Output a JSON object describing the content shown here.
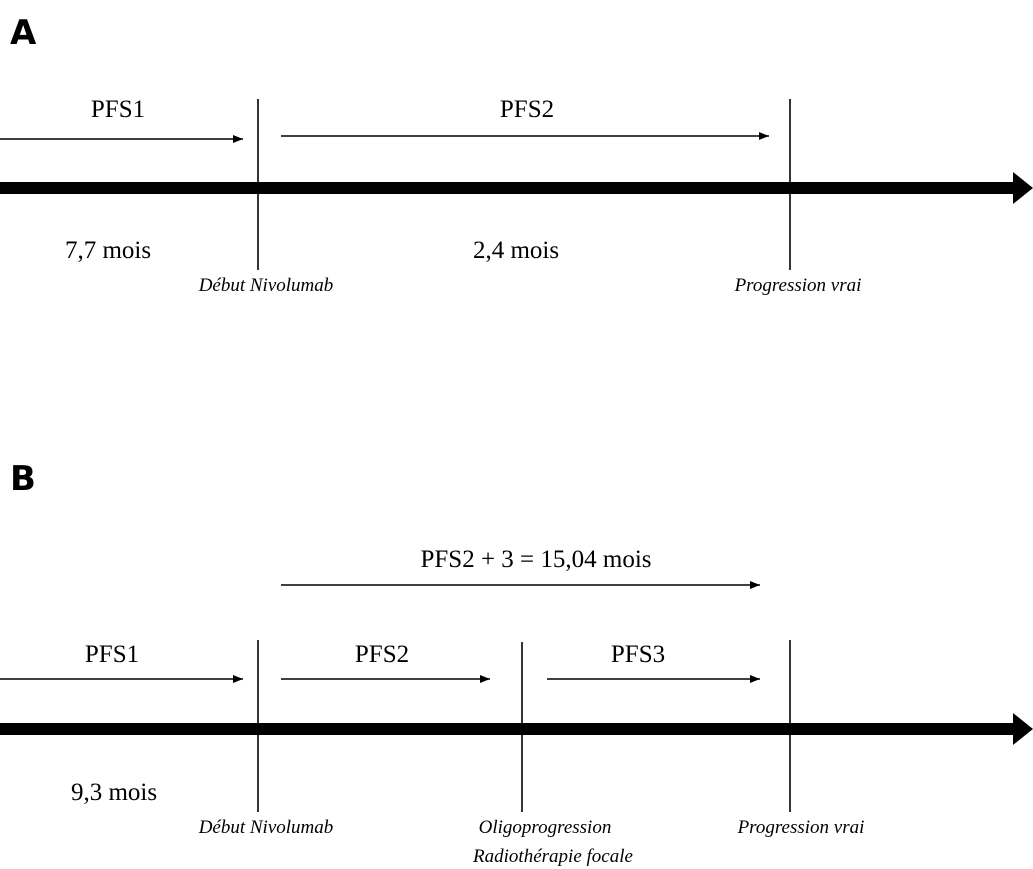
{
  "panels": {
    "a": {
      "letter": "A",
      "pfs1": "PFS1",
      "pfs2": "PFS2",
      "duration1": "7,7 mois",
      "duration2": "2,4 mois",
      "event1": "Début Nivolumab",
      "event2": "Progression vrai"
    },
    "b": {
      "letter": "B",
      "combined": "PFS2 + 3 = 15,04 mois",
      "pfs1": "PFS1",
      "pfs2": "PFS2",
      "pfs3": "PFS3",
      "duration1": "9,3 mois",
      "event1": "Début Nivolumab",
      "event2_line1": "Oligoprogression",
      "event2_line2": "Radiothérapie focale",
      "event3": "Progression vrai"
    }
  }
}
